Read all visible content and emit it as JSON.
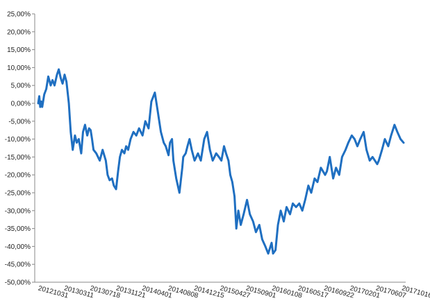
{
  "chart_data": {
    "type": "line",
    "ylim": [
      -50,
      25
    ],
    "y_ticks": [
      25,
      20,
      15,
      10,
      5,
      0,
      -5,
      -10,
      -15,
      -20,
      -25,
      -30,
      -35,
      -40,
      -45,
      -50
    ],
    "y_tick_labels": [
      "25,00%",
      "20,00%",
      "15,00%",
      "10,00%",
      "5,00%",
      "0,00%",
      "-5,00%",
      "-10,00%",
      "-15,00%",
      "-20,00%",
      "-25,00%",
      "-30,00%",
      "-35,00%",
      "-40,00%",
      "-45,00%",
      "-50,00%"
    ],
    "x_tick_labels": [
      "20121031",
      "20130311",
      "20130718",
      "20131121",
      "20140401",
      "20140808",
      "20141215",
      "20150427",
      "20150901",
      "20160108",
      "20160517",
      "20160922",
      "20170201",
      "20170607",
      "20171016"
    ],
    "grid": false,
    "legend": "none",
    "line_color": "#1f6fc1",
    "series": [
      {
        "x": [
          "20121031",
          "20121105",
          "20121110",
          "20121115",
          "20121120",
          "20121130",
          "20121210",
          "20121220",
          "20130101",
          "20130110",
          "20130120",
          "20130201",
          "20130210",
          "20130220",
          "20130301",
          "20130311",
          "20130320",
          "20130401",
          "20130410",
          "20130420",
          "20130501",
          "20130510",
          "20130520",
          "20130601",
          "20130610",
          "20130620",
          "20130701",
          "20130710",
          "20130718",
          "20130725",
          "20130801",
          "20130815",
          "20130901",
          "20130915",
          "20131001",
          "20131010",
          "20131020",
          "20131101",
          "20131110",
          "20131121",
          "20131201",
          "20131210",
          "20131220",
          "20140101",
          "20140110",
          "20140120",
          "20140201",
          "20140215",
          "20140301",
          "20140315",
          "20140401",
          "20140415",
          "20140501",
          "20140515",
          "20140601",
          "20140615",
          "20140701",
          "20140715",
          "20140725",
          "20140808",
          "20140815",
          "20140825",
          "20140901",
          "20140915",
          "20141001",
          "20141015",
          "20141020",
          "20141101",
          "20141110",
          "20141120",
          "20141201",
          "20141215",
          "20150101",
          "20150115",
          "20150201",
          "20150215",
          "20150301",
          "20150315",
          "20150401",
          "20150415",
          "20150427",
          "20150510",
          "20150520",
          "20150601",
          "20150610",
          "20150620",
          "20150701",
          "20150710",
          "20150720",
          "20150801",
          "20150815",
          "20150901",
          "20150915",
          "20151001",
          "20151015",
          "20151101",
          "20151115",
          "20151201",
          "20151215",
          "20160101",
          "20160108",
          "20160120",
          "20160201",
          "20160215",
          "20160301",
          "20160315",
          "20160401",
          "20160415",
          "20160501",
          "20160517",
          "20160601",
          "20160615",
          "20160701",
          "20160715",
          "20160801",
          "20160815",
          "20160901",
          "20160922",
          "20161001",
          "20161015",
          "20161101",
          "20161115",
          "20161201",
          "20161215",
          "20170101",
          "20170115",
          "20170201",
          "20170215",
          "20170301",
          "20170315",
          "20170401",
          "20170415",
          "20170501",
          "20170515",
          "20170607",
          "20170615",
          "20170701",
          "20170715",
          "20170801",
          "20170815",
          "20170901",
          "20170915",
          "20171001",
          "20171016"
        ],
        "y": [
          0.0,
          2.0,
          -1.0,
          0.5,
          -1.0,
          2.5,
          4.0,
          7.5,
          5.0,
          6.5,
          5.0,
          8.0,
          9.5,
          7.0,
          5.5,
          8.0,
          6.0,
          0.0,
          -8.0,
          -13.0,
          -9.0,
          -11.0,
          -10.0,
          -14.0,
          -8.0,
          -6.0,
          -9.0,
          -7.0,
          -7.5,
          -10.0,
          -13.0,
          -14.0,
          -16.0,
          -13.0,
          -16.0,
          -20.0,
          -21.5,
          -21.0,
          -23.0,
          -24.0,
          -19.0,
          -15.0,
          -13.0,
          -14.0,
          -12.0,
          -13.0,
          -10.0,
          -8.0,
          -9.0,
          -7.0,
          -9.0,
          -5.0,
          -7.0,
          0.5,
          3.0,
          -2.0,
          -8.0,
          -11.0,
          -12.0,
          -14.5,
          -11.0,
          -10.0,
          -16.0,
          -21.0,
          -25.0,
          -18.0,
          -15.0,
          -14.0,
          -12.0,
          -10.0,
          -13.0,
          -16.0,
          -14.0,
          -16.0,
          -10.0,
          -8.0,
          -13.0,
          -16.0,
          -14.0,
          -15.0,
          -16.0,
          -12.0,
          -14.0,
          -16.0,
          -20.0,
          -22.0,
          -26.0,
          -35.0,
          -30.0,
          -34.0,
          -31.0,
          -27.0,
          -31.0,
          -33.0,
          -36.0,
          -34.0,
          -38.0,
          -40.0,
          -42.0,
          -39.0,
          -42.0,
          -41.0,
          -34.0,
          -30.0,
          -33.0,
          -29.0,
          -31.0,
          -28.0,
          -29.0,
          -28.0,
          -30.0,
          -27.0,
          -23.0,
          -25.0,
          -21.0,
          -22.0,
          -18.0,
          -20.0,
          -19.0,
          -15.0,
          -21.0,
          -18.0,
          -20.0,
          -15.0,
          -13.0,
          -11.0,
          -9.0,
          -10.0,
          -12.0,
          -10.0,
          -8.0,
          -13.0,
          -16.0,
          -15.0,
          -17.0,
          -16.0,
          -13.0,
          -10.0,
          -12.0,
          -9.0,
          -6.0,
          -8.0,
          -10.0,
          -11.0
        ]
      }
    ]
  }
}
